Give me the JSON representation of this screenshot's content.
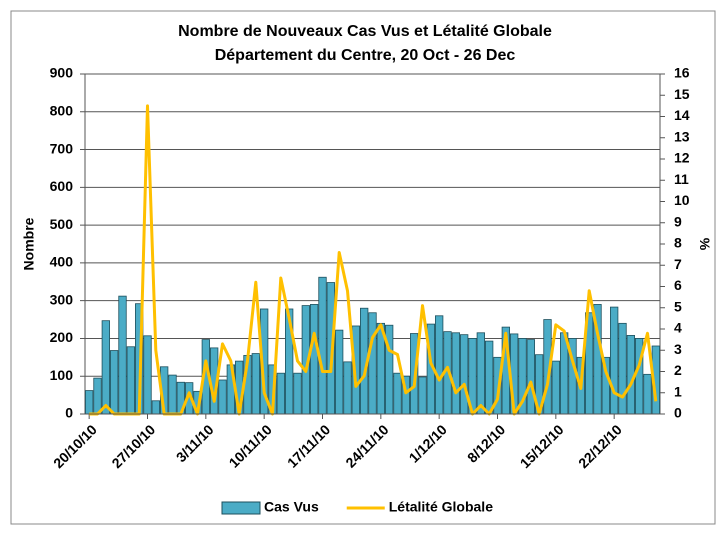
{
  "chart_data": {
    "type": "bar_line",
    "title": "Nombre de Nouveaux Cas Vus et Létalité Globale",
    "subtitle": "Département du Centre, 20 Oct - 26 Dec",
    "y_label": "Nombre",
    "y2_label": "%",
    "categories": [
      "20/10/10",
      null,
      null,
      null,
      null,
      null,
      null,
      "27/10/10",
      null,
      null,
      null,
      null,
      null,
      null,
      "3/11/10",
      null,
      null,
      null,
      null,
      null,
      null,
      "10/11/10",
      null,
      null,
      null,
      null,
      null,
      null,
      "17/11/10",
      null,
      null,
      null,
      null,
      null,
      null,
      "24/11/10",
      null,
      null,
      null,
      null,
      null,
      null,
      "1/12/10",
      null,
      null,
      null,
      null,
      null,
      null,
      "8/12/10",
      null,
      null,
      null,
      null,
      null,
      null,
      "15/12/10",
      null,
      null,
      null,
      null,
      null,
      null,
      "22/12/10",
      null,
      null,
      null,
      null,
      null
    ],
    "series": [
      {
        "name": "Cas Vus",
        "type": "bar",
        "color": "#4bacc6",
        "values": [
          62,
          95,
          247,
          168,
          312,
          178,
          292,
          207,
          35,
          125,
          103,
          84,
          83,
          60,
          197,
          175,
          90,
          130,
          140,
          155,
          160,
          278,
          130,
          108,
          278,
          108,
          287,
          290,
          362,
          348,
          222,
          138,
          233,
          280,
          268,
          240,
          235,
          108,
          100,
          213,
          98,
          238,
          260,
          218,
          215,
          210,
          200,
          215,
          193,
          150,
          230,
          212,
          200,
          197,
          157,
          250,
          140,
          215,
          200,
          150,
          268,
          290,
          150,
          283,
          240,
          208,
          200,
          105,
          180
        ]
      },
      {
        "name": "Létalité Globale",
        "type": "line",
        "axis": "y2",
        "color": "#ffc000",
        "values": [
          0,
          0,
          0.4,
          0,
          0,
          0,
          0,
          14.5,
          3,
          0,
          0,
          0,
          1,
          0,
          2.5,
          0.6,
          3.3,
          2.5,
          0,
          2.5,
          6.2,
          1,
          0,
          6.4,
          4.5,
          2.5,
          2,
          3.8,
          2,
          2,
          7.6,
          5.8,
          1.3,
          1.8,
          3.6,
          4.2,
          3,
          2.8,
          1,
          1.3,
          5.1,
          2.4,
          1.6,
          2.2,
          1,
          1.4,
          0,
          0.4,
          0,
          0.7,
          3.8,
          0,
          0.6,
          1.5,
          0,
          1.4,
          4.2,
          3.9,
          2.5,
          1.2,
          5.8,
          3.8,
          2,
          1,
          0.8,
          1.4,
          2.3,
          3.8,
          0.6
        ]
      }
    ],
    "ylim": [
      0,
      900
    ],
    "yticks": [
      0,
      100,
      200,
      300,
      400,
      500,
      600,
      700,
      800,
      900
    ],
    "y2lim": [
      0,
      16
    ],
    "y2ticks": [
      0,
      1,
      2,
      3,
      4,
      5,
      6,
      7,
      8,
      9,
      10,
      11,
      12,
      13,
      14,
      15,
      16
    ],
    "grid": true,
    "legend": "bottom"
  }
}
